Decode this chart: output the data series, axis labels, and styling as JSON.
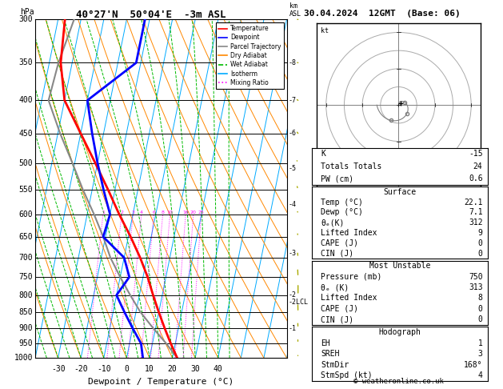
{
  "title_left": "40°27'N  50°04'E  -3m ASL",
  "title_right": "30.04.2024  12GMT  (Base: 06)",
  "xlabel": "Dewpoint / Temperature (°C)",
  "ylabel_left": "hPa",
  "pressure_levels": [
    300,
    350,
    400,
    450,
    500,
    550,
    600,
    650,
    700,
    750,
    800,
    850,
    900,
    950,
    1000
  ],
  "temp_ticks": [
    -30,
    -20,
    -10,
    0,
    10,
    20,
    30,
    40
  ],
  "isotherms_color": "#00aaff",
  "dry_adiabats_color": "#ff8800",
  "wet_adiabats_color": "#00bb00",
  "mixing_ratio_color": "#ff00ff",
  "temp_profile_color": "#ff0000",
  "dewp_profile_color": "#0000ff",
  "parcel_color": "#888888",
  "mixing_ratio_values": [
    1,
    2,
    3,
    4,
    6,
    8,
    10,
    16,
    20,
    25
  ],
  "temp_data_pressure": [
    1000,
    950,
    900,
    850,
    800,
    750,
    700,
    650,
    600,
    550,
    500,
    450,
    400,
    350,
    300
  ],
  "temp_data_C": [
    22.1,
    18,
    14,
    10,
    6,
    2,
    -3,
    -9,
    -16,
    -23,
    -31,
    -40,
    -50,
    -55,
    -57
  ],
  "dewp_data_pressure": [
    1000,
    950,
    900,
    850,
    800,
    750,
    700,
    650,
    600,
    550,
    500,
    450,
    400,
    350,
    300
  ],
  "dewp_data_C": [
    7.1,
    5,
    0,
    -5,
    -10,
    -6,
    -10,
    -21,
    -20,
    -25,
    -30,
    -35,
    -40,
    -22,
    -22
  ],
  "parcel_data_pressure": [
    1000,
    950,
    900,
    850,
    800,
    750,
    700,
    650,
    600,
    550,
    500,
    450,
    400,
    350,
    300
  ],
  "parcel_data_C": [
    22.1,
    16,
    9,
    2,
    -4,
    -10,
    -16,
    -21,
    -27,
    -34,
    -41,
    -49,
    -57,
    -56,
    -53
  ],
  "lcl_pressure": 820,
  "km_labels": {
    "8": 350,
    "7": 400,
    "6": 450,
    "5": 510,
    "4": 580,
    "3": 690,
    "2": 800,
    "1": 900
  },
  "wind_pressures": [
    1000,
    950,
    900,
    850,
    800,
    750,
    700,
    650,
    600,
    550,
    500,
    450,
    400,
    350,
    300
  ],
  "wind_dirs": [
    168,
    168,
    170,
    175,
    180,
    170,
    160,
    150,
    145,
    135,
    120,
    110,
    100,
    95,
    90
  ],
  "wind_spds": [
    4,
    5,
    6,
    8,
    10,
    8,
    6,
    5,
    5,
    4,
    4,
    3,
    3,
    2,
    2
  ],
  "stats_K": -15,
  "stats_TT": 24,
  "stats_PW": 0.6,
  "stats_SfcTemp": 22.1,
  "stats_SfcDewp": 7.1,
  "stats_SfcThetaE": 312,
  "stats_SfcLI": 9,
  "stats_SfcCAPE": 0,
  "stats_SfcCIN": 0,
  "stats_MUPres": 750,
  "stats_MUThetaE": 313,
  "stats_MULI": 8,
  "stats_MUCAPE": 0,
  "stats_MUCIN": 0,
  "stats_EH": 1,
  "stats_SREH": 3,
  "stats_StmDir": 168,
  "stats_StmSpd": 4,
  "legend_labels": [
    "Temperature",
    "Dewpoint",
    "Parcel Trajectory",
    "Dry Adiabat",
    "Wet Adiabat",
    "Isotherm",
    "Mixing Ratio"
  ],
  "legend_colors": [
    "#ff0000",
    "#0000ff",
    "#888888",
    "#ff8800",
    "#00bb00",
    "#00aaff",
    "#ff00ff"
  ],
  "legend_styles": [
    "-",
    "-",
    "-",
    "-",
    "--",
    "-",
    ":"
  ]
}
